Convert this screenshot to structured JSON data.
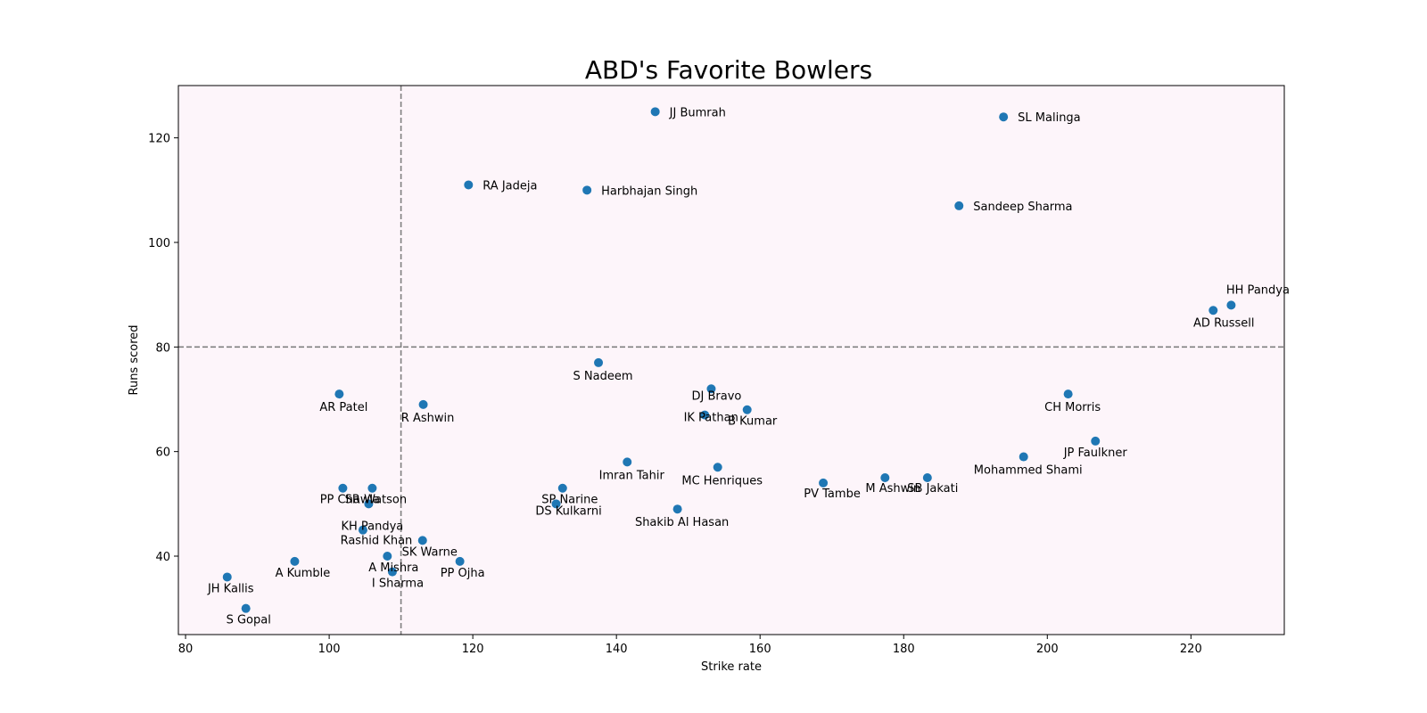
{
  "chart_data": {
    "type": "scatter",
    "title": "ABD's Favorite Bowlers",
    "xlabel": "Strike rate",
    "ylabel": "Runs scored",
    "xlim": [
      79,
      233
    ],
    "ylim": [
      25,
      130
    ],
    "xticks": [
      "80",
      "100",
      "120",
      "140",
      "160",
      "180",
      "200",
      "220"
    ],
    "yticks": [
      "40",
      "60",
      "80",
      "100",
      "120"
    ],
    "grid": false,
    "reference_lines": {
      "x": 110,
      "y": 80
    },
    "colors": {
      "background": "#fdf5fa",
      "marker": "#1f77b4",
      "reference_line": "#808080",
      "highlight_label": "#8b0000"
    },
    "points": [
      {
        "name": "JJ Bumrah",
        "x": 145.4,
        "y": 125,
        "highlight": true
      },
      {
        "name": "SL Malinga",
        "x": 193.9,
        "y": 124
      },
      {
        "name": "RA Jadeja",
        "x": 119.4,
        "y": 111
      },
      {
        "name": "Harbhajan Singh",
        "x": 135.9,
        "y": 110
      },
      {
        "name": "Sandeep Sharma",
        "x": 187.7,
        "y": 107
      },
      {
        "name": "HH Pandya",
        "x": 225.6,
        "y": 88
      },
      {
        "name": "AD Russell",
        "x": 223.1,
        "y": 87
      },
      {
        "name": "S Nadeem",
        "x": 137.5,
        "y": 77
      },
      {
        "name": "AR Patel",
        "x": 101.4,
        "y": 71
      },
      {
        "name": "R Ashwin",
        "x": 113.1,
        "y": 69
      },
      {
        "name": "DJ Bravo",
        "x": 153.2,
        "y": 72
      },
      {
        "name": "B Kumar",
        "x": 158.2,
        "y": 68
      },
      {
        "name": "IK Pathan",
        "x": 152.3,
        "y": 67
      },
      {
        "name": "CH Morris",
        "x": 202.9,
        "y": 71
      },
      {
        "name": "JP Faulkner",
        "x": 206.7,
        "y": 62
      },
      {
        "name": "Mohammed Shami",
        "x": 196.7,
        "y": 59
      },
      {
        "name": "Imran Tahir",
        "x": 141.5,
        "y": 58
      },
      {
        "name": "MC Henriques",
        "x": 154.1,
        "y": 57
      },
      {
        "name": "PV Tambe",
        "x": 168.8,
        "y": 54
      },
      {
        "name": "M Ashwin",
        "x": 177.4,
        "y": 55
      },
      {
        "name": "SB Jakati",
        "x": 183.3,
        "y": 55
      },
      {
        "name": "PP Chawla",
        "x": 101.9,
        "y": 53
      },
      {
        "name": "SR Watson",
        "x": 106.0,
        "y": 53
      },
      {
        "name": "KH Pandya",
        "x": 105.5,
        "y": 50
      },
      {
        "name": "SP Narine",
        "x": 132.5,
        "y": 53
      },
      {
        "name": "DS Kulkarni",
        "x": 131.6,
        "y": 50
      },
      {
        "name": "Shakib Al Hasan",
        "x": 148.5,
        "y": 49
      },
      {
        "name": "Rashid Khan",
        "x": 104.7,
        "y": 45
      },
      {
        "name": "SK Warne",
        "x": 113.0,
        "y": 43
      },
      {
        "name": "A Mishra",
        "x": 108.1,
        "y": 40
      },
      {
        "name": "I Sharma",
        "x": 108.8,
        "y": 37
      },
      {
        "name": "PP Ojha",
        "x": 118.2,
        "y": 39
      },
      {
        "name": "A Kumble",
        "x": 95.2,
        "y": 39
      },
      {
        "name": "JH Kallis",
        "x": 85.8,
        "y": 36
      },
      {
        "name": "S Gopal",
        "x": 88.4,
        "y": 30
      }
    ]
  }
}
